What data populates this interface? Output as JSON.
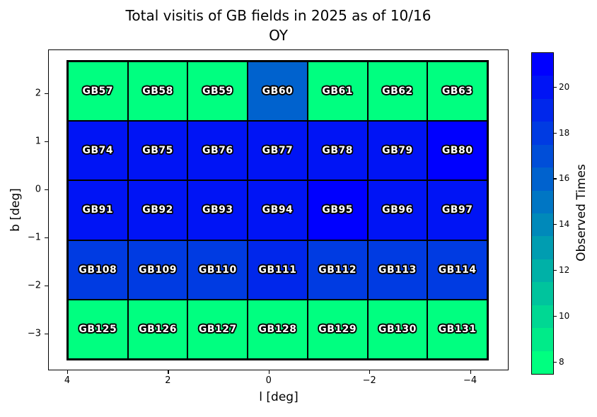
{
  "figure": {
    "title_line1": "Total visitis of GB fields in 2025 as of 10/16",
    "title_line2": "OY"
  },
  "axes": {
    "xlabel": "l [deg]",
    "ylabel": "b [deg]",
    "x_tick_labels": [
      "4",
      "2",
      "0",
      "−2",
      "−4"
    ],
    "y_tick_labels": [
      "2",
      "1",
      "0",
      "−1",
      "−2",
      "−3"
    ]
  },
  "colorbar": {
    "label": "Observed Times",
    "tick_labels": [
      "20",
      "18",
      "16",
      "14",
      "12",
      "10",
      "8"
    ],
    "tick_values": [
      20,
      18,
      16,
      14,
      12,
      10,
      8
    ],
    "vmin": 7.5,
    "vmax": 21.5,
    "levels": 14,
    "colormap": "winter_r",
    "color_low": "#00FF80",
    "color_high": "#0000FF"
  },
  "chart_data": {
    "type": "heatmap",
    "title": "Total visitis of GB fields in 2025 as of 10/16 OY",
    "xlabel": "l [deg]",
    "ylabel": "b [deg]",
    "colorbar_label": "Observed Times",
    "x_ticks": [
      4,
      2,
      0,
      -2,
      -4
    ],
    "y_ticks": [
      2,
      1,
      0,
      -1,
      -2,
      -3
    ],
    "x_axis_inverted": true,
    "value_unit": "observed times",
    "rows": [
      {
        "labels": [
          "GB57",
          "GB58",
          "GB59",
          "GB60",
          "GB61",
          "GB62",
          "GB63"
        ],
        "values": [
          8,
          8,
          8,
          16,
          8,
          8,
          8
        ]
      },
      {
        "labels": [
          "GB74",
          "GB75",
          "GB76",
          "GB77",
          "GB78",
          "GB79",
          "GB80"
        ],
        "values": [
          20,
          20,
          20,
          20,
          20,
          20,
          21
        ]
      },
      {
        "labels": [
          "GB91",
          "GB92",
          "GB93",
          "GB94",
          "GB95",
          "GB96",
          "GB97"
        ],
        "values": [
          20,
          20,
          20,
          20,
          21,
          20,
          20
        ]
      },
      {
        "labels": [
          "GB108",
          "GB109",
          "GB110",
          "GB111",
          "GB112",
          "GB113",
          "GB114"
        ],
        "values": [
          18,
          18,
          18,
          19,
          18,
          18,
          18
        ]
      },
      {
        "labels": [
          "GB125",
          "GB126",
          "GB127",
          "GB128",
          "GB129",
          "GB130",
          "GB131"
        ],
        "values": [
          8,
          8,
          8,
          8,
          8,
          8,
          8
        ]
      }
    ]
  },
  "text_style": {
    "cell_text_color": "#ffffff",
    "cell_outline_color": "#000000",
    "axis_color": "#000000",
    "background": "#ffffff"
  }
}
